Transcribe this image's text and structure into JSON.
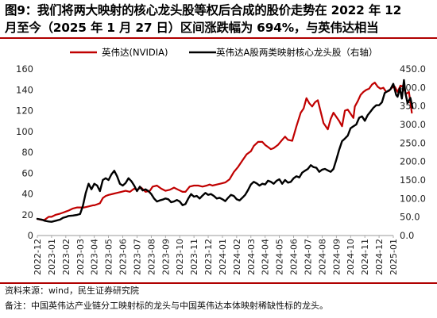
{
  "title_lines": [
    "图9：我们将两大映射的核心龙头股等权后合成的股价走势在 2022 年 12",
    "月至今（2025 年 1 月 27 日）区间涨跌幅为 694%，与英伟达相当"
  ],
  "source": "资料来源：wind，民生证券研究院",
  "note": "备注：中国英伟达产业链分工映射标的龙头与中国英伟达本体映射稀缺性标的龙头。",
  "colors": {
    "nvidia": "#c00000",
    "china": "#000000",
    "rule": "#b00000"
  },
  "chart_data": {
    "type": "line",
    "x": [
      "2022-12",
      "2023-01",
      "2023-02",
      "2023-03",
      "2023-04",
      "2023-05",
      "2023-06",
      "2023-07",
      "2023-08",
      "2023-09",
      "2023-10",
      "2023-11",
      "2023-12",
      "2024-01",
      "2024-02",
      "2024-03",
      "2024-04",
      "2024-05",
      "2024-06",
      "2024-07",
      "2024-08",
      "2024-09",
      "2024-10",
      "2024-11",
      "2024-12",
      "2025-01"
    ],
    "left_axis": {
      "ticks": [
        "0",
        "20",
        "40",
        "60",
        "80",
        "100",
        "120",
        "140",
        "160"
      ],
      "range": [
        0,
        160
      ]
    },
    "right_axis": {
      "ticks": [
        "0.0",
        "50.0",
        "100.0",
        "150.0",
        "200.0",
        "250.0",
        "300.0",
        "350.0",
        "400.0",
        "450.0"
      ],
      "range": [
        0,
        450
      ]
    },
    "legend_position": "top",
    "series": [
      {
        "name": "英伟达(NVIDIA)",
        "axis": "left",
        "color": "#c00000",
        "values": [
          [
            0,
            16
          ],
          [
            0.3,
            15
          ],
          [
            0.5,
            15
          ],
          [
            0.8,
            18
          ],
          [
            1,
            18
          ],
          [
            1.3,
            20
          ],
          [
            1.6,
            21
          ],
          [
            1.8,
            22
          ],
          [
            2,
            23
          ],
          [
            2.2,
            24
          ],
          [
            2.5,
            26
          ],
          [
            2.8,
            27
          ],
          [
            3,
            27
          ],
          [
            3.3,
            27
          ],
          [
            3.6,
            28
          ],
          [
            3.9,
            29
          ],
          [
            4,
            29
          ],
          [
            4.2,
            30
          ],
          [
            4.4,
            31
          ],
          [
            4.6,
            36
          ],
          [
            4.8,
            38
          ],
          [
            5,
            39
          ],
          [
            5.3,
            40
          ],
          [
            5.6,
            41
          ],
          [
            5.9,
            42
          ],
          [
            6.2,
            43
          ],
          [
            6.5,
            42
          ],
          [
            6.8,
            45
          ],
          [
            7,
            44
          ],
          [
            7.3,
            46
          ],
          [
            7.6,
            42
          ],
          [
            7.9,
            43
          ],
          [
            8.1,
            47
          ],
          [
            8.4,
            48
          ],
          [
            8.7,
            45
          ],
          [
            9,
            43
          ],
          [
            9.3,
            44
          ],
          [
            9.6,
            46
          ],
          [
            9.9,
            44
          ],
          [
            10.2,
            42
          ],
          [
            10.4,
            42
          ],
          [
            10.7,
            47
          ],
          [
            11,
            48
          ],
          [
            11.3,
            48
          ],
          [
            11.6,
            47
          ],
          [
            11.9,
            48
          ],
          [
            12.1,
            49
          ],
          [
            12.3,
            48
          ],
          [
            12.6,
            49
          ],
          [
            12.9,
            50
          ],
          [
            13.2,
            51
          ],
          [
            13.5,
            54
          ],
          [
            13.8,
            61
          ],
          [
            14.1,
            66
          ],
          [
            14.4,
            72
          ],
          [
            14.7,
            78
          ],
          [
            15,
            81
          ],
          [
            15.2,
            86
          ],
          [
            15.5,
            90
          ],
          [
            15.8,
            90
          ],
          [
            16,
            87
          ],
          [
            16.2,
            85
          ],
          [
            16.4,
            83
          ],
          [
            16.6,
            84
          ],
          [
            16.9,
            87
          ],
          [
            17.2,
            92
          ],
          [
            17.4,
            95
          ],
          [
            17.6,
            92
          ],
          [
            17.9,
            91
          ],
          [
            18.2,
            105
          ],
          [
            18.5,
            118
          ],
          [
            18.7,
            122
          ],
          [
            18.9,
            132
          ],
          [
            19.1,
            127
          ],
          [
            19.3,
            124
          ],
          [
            19.5,
            128
          ],
          [
            19.7,
            130
          ],
          [
            19.9,
            119
          ],
          [
            20.1,
            108
          ],
          [
            20.4,
            102
          ],
          [
            20.6,
            112
          ],
          [
            20.8,
            118
          ],
          [
            21,
            114
          ],
          [
            21.2,
            110
          ],
          [
            21.4,
            105
          ],
          [
            21.6,
            120
          ],
          [
            21.8,
            121
          ],
          [
            22,
            117
          ],
          [
            22.2,
            113
          ],
          [
            22.3,
            124
          ],
          [
            22.5,
            129
          ],
          [
            22.7,
            135
          ],
          [
            22.9,
            138
          ],
          [
            23.1,
            140
          ],
          [
            23.3,
            141
          ],
          [
            23.5,
            145
          ],
          [
            23.7,
            147
          ],
          [
            23.9,
            143
          ],
          [
            24.1,
            141
          ],
          [
            24.3,
            142
          ],
          [
            24.5,
            138
          ],
          [
            24.7,
            139
          ],
          [
            24.9,
            142
          ],
          [
            25.1,
            143
          ],
          [
            25.3,
            138
          ],
          [
            25.5,
            144
          ],
          [
            25.7,
            143
          ],
          [
            25.9,
            136
          ],
          [
            26.1,
            138
          ],
          [
            26.2,
            128
          ],
          [
            26.3,
            118
          ]
        ]
      },
      {
        "name": "英伟达A股两类映射核心龙头股（右轴）",
        "axis": "right",
        "color": "#000000",
        "values": [
          [
            0,
            45
          ],
          [
            0.3,
            43
          ],
          [
            0.5,
            40
          ],
          [
            0.8,
            38
          ],
          [
            1,
            37
          ],
          [
            1.3,
            40
          ],
          [
            1.6,
            43
          ],
          [
            1.8,
            48
          ],
          [
            2,
            50
          ],
          [
            2.2,
            53
          ],
          [
            2.5,
            54
          ],
          [
            2.8,
            56
          ],
          [
            3,
            58
          ],
          [
            3.2,
            80
          ],
          [
            3.4,
            115
          ],
          [
            3.6,
            140
          ],
          [
            3.8,
            125
          ],
          [
            4,
            140
          ],
          [
            4.2,
            135
          ],
          [
            4.4,
            120
          ],
          [
            4.6,
            150
          ],
          [
            4.8,
            155
          ],
          [
            5,
            150
          ],
          [
            5.2,
            165
          ],
          [
            5.4,
            175
          ],
          [
            5.6,
            160
          ],
          [
            5.8,
            140
          ],
          [
            6,
            135
          ],
          [
            6.2,
            142
          ],
          [
            6.4,
            155
          ],
          [
            6.6,
            147
          ],
          [
            6.8,
            135
          ],
          [
            7,
            120
          ],
          [
            7.2,
            132
          ],
          [
            7.4,
            122
          ],
          [
            7.6,
            125
          ],
          [
            7.8,
            120
          ],
          [
            8,
            112
          ],
          [
            8.2,
            100
          ],
          [
            8.4,
            92
          ],
          [
            8.6,
            95
          ],
          [
            8.8,
            97
          ],
          [
            9,
            100
          ],
          [
            9.2,
            98
          ],
          [
            9.4,
            90
          ],
          [
            9.6,
            92
          ],
          [
            9.8,
            96
          ],
          [
            10,
            92
          ],
          [
            10.2,
            82
          ],
          [
            10.4,
            85
          ],
          [
            10.6,
            100
          ],
          [
            10.8,
            112
          ],
          [
            11,
            105
          ],
          [
            11.2,
            107
          ],
          [
            11.4,
            100
          ],
          [
            11.6,
            108
          ],
          [
            11.8,
            115
          ],
          [
            12,
            110
          ],
          [
            12.2,
            112
          ],
          [
            12.4,
            107
          ],
          [
            12.6,
            100
          ],
          [
            12.8,
            102
          ],
          [
            13,
            98
          ],
          [
            13.2,
            93
          ],
          [
            13.4,
            102
          ],
          [
            13.6,
            110
          ],
          [
            13.8,
            107
          ],
          [
            14,
            98
          ],
          [
            14.2,
            95
          ],
          [
            14.4,
            102
          ],
          [
            14.6,
            110
          ],
          [
            14.8,
            123
          ],
          [
            15,
            138
          ],
          [
            15.2,
            145
          ],
          [
            15.4,
            141
          ],
          [
            15.6,
            135
          ],
          [
            15.8,
            140
          ],
          [
            16,
            138
          ],
          [
            16.2,
            148
          ],
          [
            16.4,
            145
          ],
          [
            16.6,
            140
          ],
          [
            16.8,
            148
          ],
          [
            17,
            152
          ],
          [
            17.2,
            140
          ],
          [
            17.4,
            150
          ],
          [
            17.6,
            143
          ],
          [
            17.8,
            145
          ],
          [
            18,
            155
          ],
          [
            18.2,
            160
          ],
          [
            18.4,
            157
          ],
          [
            18.6,
            170
          ],
          [
            18.8,
            175
          ],
          [
            19,
            180
          ],
          [
            19.2,
            190
          ],
          [
            19.4,
            185
          ],
          [
            19.6,
            183
          ],
          [
            19.8,
            172
          ],
          [
            20,
            178
          ],
          [
            20.2,
            180
          ],
          [
            20.4,
            176
          ],
          [
            20.6,
            172
          ],
          [
            20.8,
            180
          ],
          [
            21,
            205
          ],
          [
            21.2,
            232
          ],
          [
            21.4,
            255
          ],
          [
            21.6,
            262
          ],
          [
            21.8,
            270
          ],
          [
            22,
            290
          ],
          [
            22.2,
            295
          ],
          [
            22.4,
            300
          ],
          [
            22.6,
            318
          ],
          [
            22.8,
            322
          ],
          [
            23,
            310
          ],
          [
            23.2,
            325
          ],
          [
            23.4,
            335
          ],
          [
            23.6,
            345
          ],
          [
            23.8,
            352
          ],
          [
            24,
            352
          ],
          [
            24.2,
            360
          ],
          [
            24.4,
            385
          ],
          [
            24.6,
            390
          ],
          [
            24.8,
            395
          ],
          [
            25,
            410
          ],
          [
            25.1,
            395
          ],
          [
            25.2,
            380
          ],
          [
            25.3,
            375
          ],
          [
            25.45,
            398
          ],
          [
            25.6,
            370
          ],
          [
            25.75,
            420
          ],
          [
            25.85,
            385
          ],
          [
            26,
            358
          ],
          [
            26.1,
            365
          ],
          [
            26.2,
            372
          ],
          [
            26.35,
            345
          ]
        ]
      }
    ]
  }
}
